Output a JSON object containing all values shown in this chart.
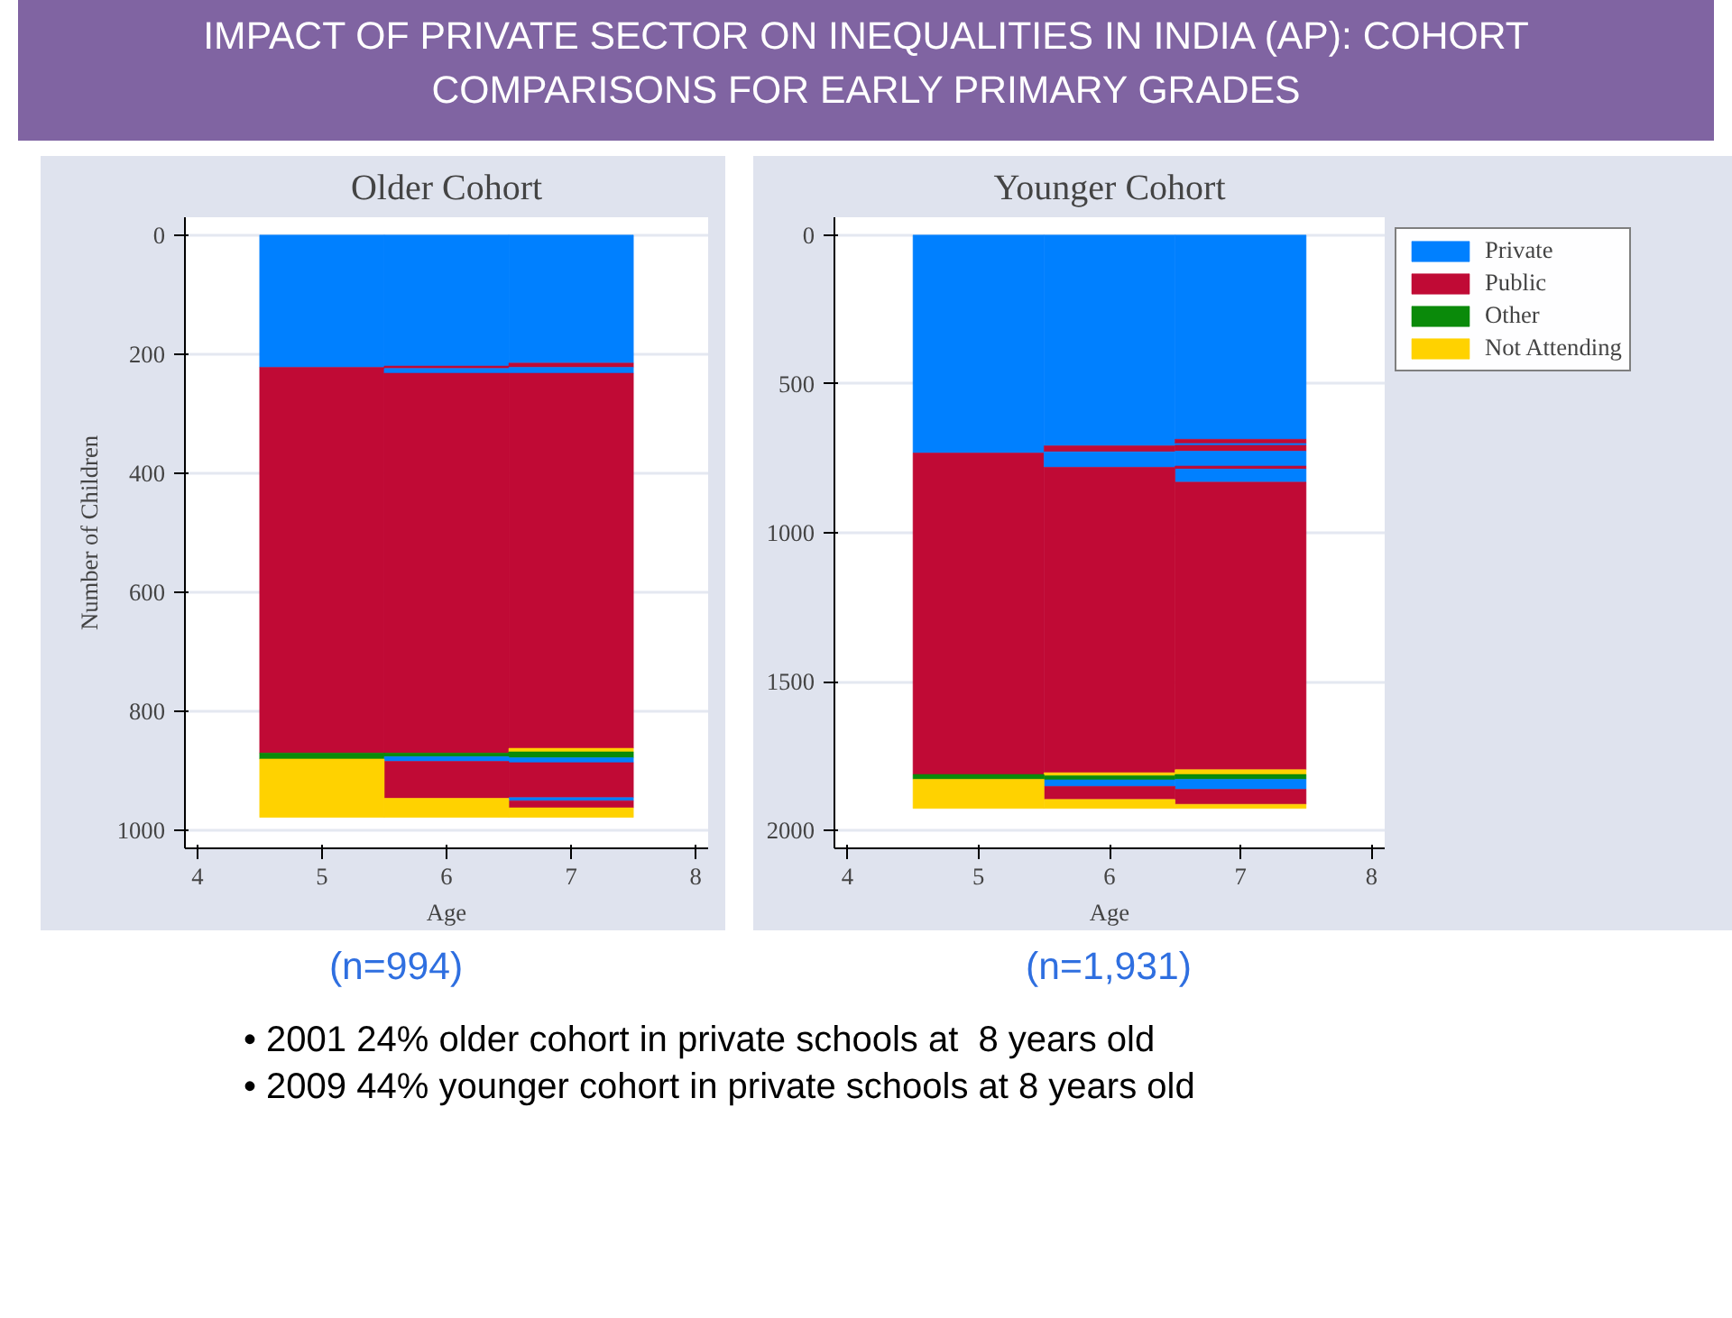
{
  "chart_data": [
    {
      "type": "other",
      "title": "IMPACT OF PRIVATE SECTOR ON INEQUALITIES IN INDIA (AP): COHORT COMPARISONS FOR EARLY PRIMARY GRADES",
      "annotations": [
        "• 2001 24% older cohort in private schools at  8 years old",
        "• 2009 44% younger cohort in private schools at 8 years old"
      ]
    },
    {
      "type": "bar",
      "stacked": true,
      "title": "Older Cohort",
      "xlabel": "Age",
      "ylabel": "Number of Children",
      "x": [
        5,
        6,
        7
      ],
      "xlim": [
        3.9,
        8.1
      ],
      "xticks": [
        4,
        5,
        6,
        7,
        8
      ],
      "ylim": [
        1030,
        -30
      ],
      "yticks": [
        0,
        200,
        400,
        600,
        800,
        1000
      ],
      "grid": "y",
      "legend": false,
      "annotations": [
        "(n=994)"
      ],
      "series": [
        {
          "color": "#0080ff",
          "values": [
            222,
            220,
            215
          ]
        },
        {
          "color": "#c00a35",
          "values": [
            648,
            4,
            7
          ]
        },
        {
          "color": "#0080ff",
          "values": [
            null,
            8,
            10
          ]
        },
        {
          "color": "#c00a35",
          "values": [
            null,
            638,
            630
          ]
        },
        {
          "color": "#ffd200",
          "values": [
            null,
            null,
            6
          ]
        },
        {
          "color": "#0a8a0a",
          "values": [
            10,
            6,
            10
          ]
        },
        {
          "color": "#0080ff",
          "values": [
            null,
            8,
            8
          ]
        },
        {
          "color": "#c00a35",
          "values": [
            null,
            62,
            59
          ]
        },
        {
          "color": "#0080ff",
          "values": [
            null,
            null,
            5
          ]
        },
        {
          "color": "#c00a35",
          "values": [
            null,
            null,
            12
          ]
        },
        {
          "color": "#ffd200",
          "values": [
            98,
            32,
            16
          ]
        }
      ]
    },
    {
      "type": "bar",
      "stacked": true,
      "title": "Younger Cohort",
      "xlabel": "Age",
      "x": [
        5,
        6,
        7
      ],
      "xlim": [
        3.9,
        8.1
      ],
      "xticks": [
        4,
        5,
        6,
        7,
        8
      ],
      "ylim": [
        2060,
        -60
      ],
      "yticks": [
        0,
        500,
        1000,
        1500,
        2000
      ],
      "grid": "y",
      "legend": "right",
      "annotations": [
        "(n=1,931)"
      ],
      "series": [
        {
          "name": "Private",
          "color": "#0080ff",
          "values": [
            732,
            708,
            686
          ]
        },
        {
          "name": "Public",
          "color": "#c00a35",
          "values": [
            1080,
            20,
            14
          ]
        },
        {
          "color": "#0080ff",
          "values": [
            null,
            52,
            6
          ]
        },
        {
          "color": "#c00a35",
          "values": [
            null,
            null,
            20
          ]
        },
        {
          "color": "#0080ff",
          "values": [
            null,
            null,
            50
          ]
        },
        {
          "color": "#c00a35",
          "values": [
            null,
            null,
            10
          ]
        },
        {
          "color": "#0080ff",
          "values": [
            null,
            null,
            44
          ]
        },
        {
          "color": "#c00a35",
          "values": [
            null,
            1026,
            966
          ]
        },
        {
          "color": "#ffd200",
          "values": [
            null,
            10,
            16
          ]
        },
        {
          "name": "Other",
          "color": "#0a8a0a",
          "values": [
            16,
            14,
            16
          ]
        },
        {
          "color": "#0080ff",
          "values": [
            null,
            22,
            34
          ]
        },
        {
          "color": "#c00a35",
          "values": [
            null,
            44,
            50
          ]
        },
        {
          "name": "Not Attending",
          "color": "#ffd200",
          "values": [
            98,
            30,
            14
          ]
        }
      ]
    }
  ]
}
